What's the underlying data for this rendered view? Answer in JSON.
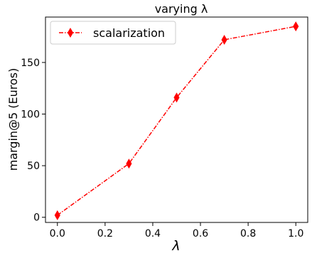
{
  "chart_data": {
    "type": "line",
    "title": "varying λ",
    "xlabel": "λ",
    "ylabel": "margin@5 (Euros)",
    "xlim": [
      -0.05,
      1.05
    ],
    "ylim": [
      -5,
      194
    ],
    "xticks": [
      0.0,
      0.2,
      0.4,
      0.6,
      0.8,
      1.0
    ],
    "xtick_labels": [
      "0.0",
      "0.2",
      "0.4",
      "0.6",
      "0.8",
      "1.0"
    ],
    "yticks": [
      0,
      50,
      100,
      150
    ],
    "ytick_labels": [
      "0",
      "50",
      "100",
      "150"
    ],
    "grid": false,
    "legend_position": "top-left",
    "series": [
      {
        "name": "scalarization",
        "x": [
          0.0,
          0.3,
          0.5,
          0.7,
          1.0
        ],
        "y": [
          2,
          52,
          116,
          172,
          185
        ],
        "color": "#ff0000",
        "line_style": "dash-dot",
        "marker": "thin-diamond"
      }
    ]
  }
}
